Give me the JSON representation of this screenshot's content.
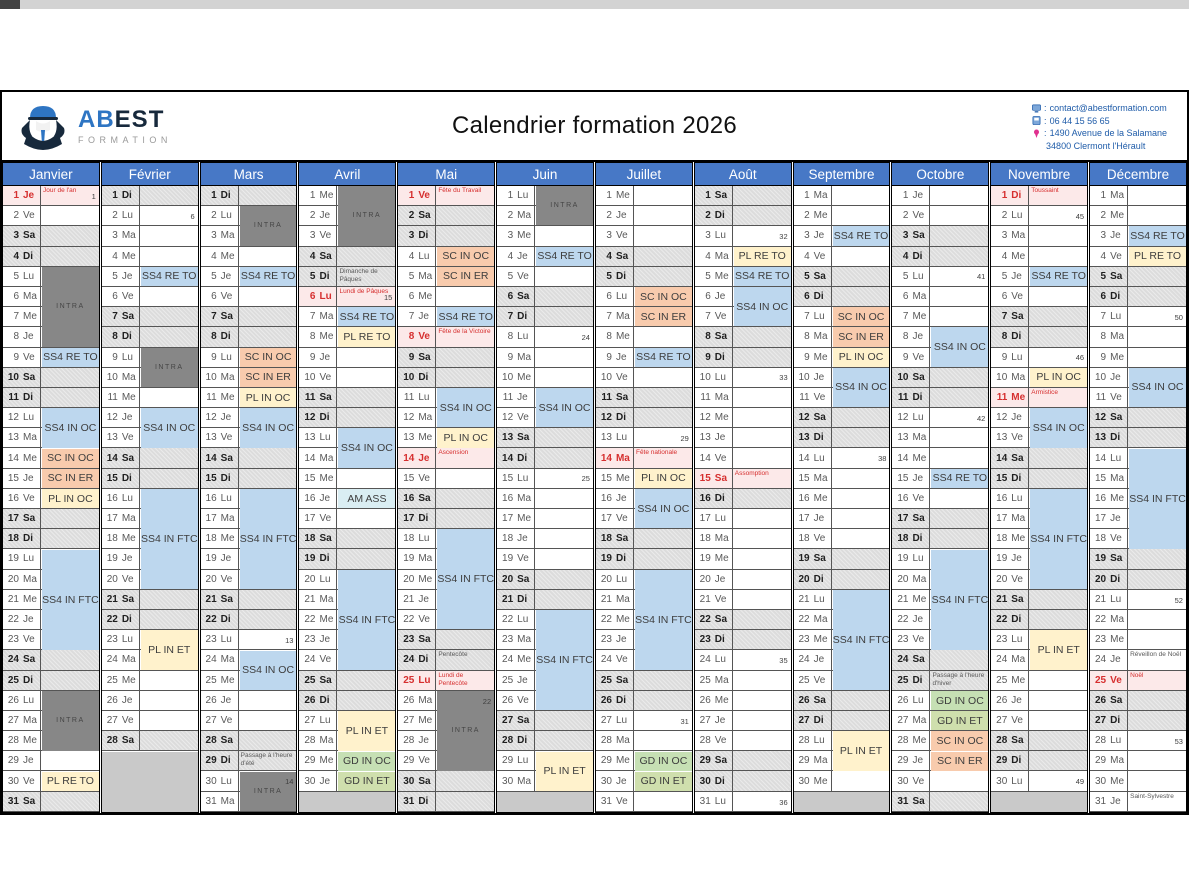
{
  "colors": {
    "header": "#4778c6",
    "blue": "#bdd7ee",
    "orange": "#f8cbad",
    "yellow": "#fff2cc",
    "green": "#c6e0b4",
    "green2": "#cfdfad",
    "cyan": "#daeef3",
    "intra": "#878787",
    "filler": "#c9c9c9",
    "holiday": "#fce9e9",
    "red": "#d62f2f",
    "contact_blue": "#1f5ca9"
  },
  "header": {
    "title": "Calendrier formation 2026",
    "logo": {
      "brand_left": "AB",
      "brand_right": "EST",
      "sub": "FORMATION"
    },
    "contact": {
      "prefix": ":",
      "email": "contact@abestformation.com",
      "phone": "06 44 15 56 65",
      "address_line1": "1490 Avenue de la Salamane",
      "address_line2": "34800 Clermont l'Hérault"
    }
  },
  "calendar": {
    "year": 2026,
    "weekday_abbrev": [
      "Di",
      "Lu",
      "Ma",
      "Me",
      "Je",
      "Ve",
      "Sa"
    ],
    "months": [
      {
        "name": "Janvier",
        "days": 31,
        "blocks": [
          {
            "s": 5,
            "e": 8,
            "code": "INTRA",
            "t": "intra"
          },
          {
            "s": 9,
            "e": 9,
            "code": "SS4 RE TO",
            "t": "blue"
          },
          {
            "s": 12,
            "e": 13,
            "code": "SS4 IN OC",
            "t": "blue"
          },
          {
            "s": 14,
            "e": 14,
            "code": "SC IN OC",
            "t": "orange"
          },
          {
            "s": 15,
            "e": 15,
            "code": "SC IN ER",
            "t": "orange"
          },
          {
            "s": 16,
            "e": 16,
            "code": "PL IN OC",
            "t": "yellow"
          },
          {
            "s": 19,
            "e": 23,
            "code": "SS4 IN FTC",
            "t": "blue"
          },
          {
            "s": 26,
            "e": 28,
            "code": "INTRA",
            "t": "intra"
          },
          {
            "s": 30,
            "e": 30,
            "code": "PL RE TO",
            "t": "yellow"
          }
        ],
        "holidays": [
          {
            "day": 1,
            "label": "Jour de l'an",
            "red": true
          }
        ],
        "weeks": [
          {
            "day": 1,
            "num": "1"
          }
        ]
      },
      {
        "name": "Février",
        "days": 28,
        "blocks": [
          {
            "s": 5,
            "e": 5,
            "code": "SS4 RE TO",
            "t": "blue"
          },
          {
            "s": 9,
            "e": 10,
            "code": "INTRA",
            "t": "intra"
          },
          {
            "s": 12,
            "e": 13,
            "code": "SS4 IN OC",
            "t": "blue"
          },
          {
            "s": 16,
            "e": 20,
            "code": "SS4 IN FTC",
            "t": "blue"
          },
          {
            "s": 23,
            "e": 24,
            "code": "PL IN ET",
            "t": "yellow"
          }
        ],
        "holidays": [],
        "weeks": [
          {
            "day": 2,
            "num": "6"
          }
        ]
      },
      {
        "name": "Mars",
        "days": 31,
        "blocks": [
          {
            "s": 2,
            "e": 3,
            "code": "INTRA",
            "t": "intra"
          },
          {
            "s": 5,
            "e": 5,
            "code": "SS4 RE TO",
            "t": "blue"
          },
          {
            "s": 9,
            "e": 9,
            "code": "SC IN OC",
            "t": "orange"
          },
          {
            "s": 10,
            "e": 10,
            "code": "SC IN ER",
            "t": "orange"
          },
          {
            "s": 11,
            "e": 11,
            "code": "PL IN OC",
            "t": "yellow"
          },
          {
            "s": 12,
            "e": 13,
            "code": "SS4 IN OC",
            "t": "blue"
          },
          {
            "s": 16,
            "e": 20,
            "code": "SS4 IN FTC",
            "t": "blue"
          },
          {
            "s": 24,
            "e": 25,
            "code": "SS4 IN OC",
            "t": "blue"
          },
          {
            "s": 30,
            "e": 31,
            "code": "INTRA",
            "t": "intra"
          }
        ],
        "holidays": [
          {
            "day": 29,
            "label": "Passage à l'heure d'été",
            "red": false
          }
        ],
        "weeks": [
          {
            "day": 23,
            "num": "13"
          },
          {
            "day": 30,
            "num": "14"
          }
        ]
      },
      {
        "name": "Avril",
        "days": 30,
        "blocks": [
          {
            "s": 1,
            "e": 3,
            "code": "INTRA",
            "t": "intra"
          },
          {
            "s": 7,
            "e": 7,
            "code": "SS4 RE TO",
            "t": "blue"
          },
          {
            "s": 8,
            "e": 8,
            "code": "PL RE TO",
            "t": "yellow"
          },
          {
            "s": 13,
            "e": 14,
            "code": "SS4 IN OC",
            "t": "blue"
          },
          {
            "s": 16,
            "e": 16,
            "code": "AM ASS",
            "t": "cyan"
          },
          {
            "s": 20,
            "e": 24,
            "code": "SS4 IN FTC",
            "t": "blue"
          },
          {
            "s": 27,
            "e": 28,
            "code": "PL IN ET",
            "t": "yellow"
          },
          {
            "s": 29,
            "e": 29,
            "code": "GD IN OC",
            "t": "green"
          },
          {
            "s": 30,
            "e": 30,
            "code": "GD IN ET",
            "t": "green2"
          }
        ],
        "holidays": [
          {
            "day": 5,
            "label": "Dimanche de Pâques",
            "red": false
          },
          {
            "day": 6,
            "label": "Lundi de Pâques",
            "red": true
          }
        ],
        "weeks": [
          {
            "day": 6,
            "num": "15"
          }
        ]
      },
      {
        "name": "Mai",
        "days": 31,
        "blocks": [
          {
            "s": 4,
            "e": 4,
            "code": "SC IN OC",
            "t": "orange"
          },
          {
            "s": 5,
            "e": 5,
            "code": "SC IN ER",
            "t": "orange"
          },
          {
            "s": 7,
            "e": 7,
            "code": "SS4 RE TO",
            "t": "blue"
          },
          {
            "s": 11,
            "e": 12,
            "code": "SS4 IN OC",
            "t": "blue"
          },
          {
            "s": 13,
            "e": 13,
            "code": "PL IN OC",
            "t": "yellow"
          },
          {
            "s": 18,
            "e": 22,
            "code": "SS4 IN FTC",
            "t": "blue"
          },
          {
            "s": 26,
            "e": 29,
            "code": "INTRA",
            "t": "intra"
          }
        ],
        "holidays": [
          {
            "day": 1,
            "label": "Fête du Travail",
            "red": true
          },
          {
            "day": 8,
            "label": "Fête de la Victoire",
            "red": true
          },
          {
            "day": 14,
            "label": "Ascension",
            "red": true
          },
          {
            "day": 24,
            "label": "Pentecôte",
            "red": false
          },
          {
            "day": 25,
            "label": "Lundi de Pentecôte",
            "red": true
          }
        ],
        "weeks": [
          {
            "day": 26,
            "num": "22"
          }
        ]
      },
      {
        "name": "Juin",
        "days": 30,
        "blocks": [
          {
            "s": 1,
            "e": 2,
            "code": "INTRA",
            "t": "intra"
          },
          {
            "s": 4,
            "e": 4,
            "code": "SS4 RE TO",
            "t": "blue"
          },
          {
            "s": 11,
            "e": 12,
            "code": "SS4 IN OC",
            "t": "blue"
          },
          {
            "s": 22,
            "e": 26,
            "code": "SS4 IN FTC",
            "t": "blue"
          },
          {
            "s": 29,
            "e": 30,
            "code": "PL IN ET",
            "t": "yellow"
          }
        ],
        "holidays": [],
        "weeks": [
          {
            "day": 8,
            "num": "24"
          },
          {
            "day": 15,
            "num": "25"
          }
        ]
      },
      {
        "name": "Juillet",
        "days": 31,
        "blocks": [
          {
            "s": 6,
            "e": 6,
            "code": "SC IN OC",
            "t": "orange"
          },
          {
            "s": 7,
            "e": 7,
            "code": "SC IN ER",
            "t": "orange"
          },
          {
            "s": 9,
            "e": 9,
            "code": "SS4 RE TO",
            "t": "blue"
          },
          {
            "s": 15,
            "e": 15,
            "code": "PL IN OC",
            "t": "yellow"
          },
          {
            "s": 16,
            "e": 17,
            "code": "SS4 IN OC",
            "t": "blue"
          },
          {
            "s": 20,
            "e": 24,
            "code": "SS4 IN FTC",
            "t": "blue"
          },
          {
            "s": 29,
            "e": 29,
            "code": "GD IN OC",
            "t": "green"
          },
          {
            "s": 30,
            "e": 30,
            "code": "GD IN ET",
            "t": "green2"
          }
        ],
        "holidays": [
          {
            "day": 14,
            "label": "Fête nationale",
            "red": true
          }
        ],
        "weeks": [
          {
            "day": 13,
            "num": "29"
          },
          {
            "day": 27,
            "num": "31"
          }
        ]
      },
      {
        "name": "Août",
        "days": 31,
        "blocks": [
          {
            "s": 4,
            "e": 4,
            "code": "PL RE TO",
            "t": "yellow"
          },
          {
            "s": 5,
            "e": 5,
            "code": "SS4 RE TO",
            "t": "blue"
          },
          {
            "s": 6,
            "e": 7,
            "code": "SS4 IN OC",
            "t": "blue"
          }
        ],
        "holidays": [
          {
            "day": 15,
            "label": "Assomption",
            "red": true
          }
        ],
        "weeks": [
          {
            "day": 3,
            "num": "32"
          },
          {
            "day": 10,
            "num": "33"
          },
          {
            "day": 24,
            "num": "35"
          },
          {
            "day": 31,
            "num": "36"
          }
        ]
      },
      {
        "name": "Septembre",
        "days": 30,
        "blocks": [
          {
            "s": 3,
            "e": 3,
            "code": "SS4 RE TO",
            "t": "blue"
          },
          {
            "s": 7,
            "e": 7,
            "code": "SC IN OC",
            "t": "orange"
          },
          {
            "s": 8,
            "e": 8,
            "code": "SC IN ER",
            "t": "orange"
          },
          {
            "s": 9,
            "e": 9,
            "code": "PL IN OC",
            "t": "yellow"
          },
          {
            "s": 10,
            "e": 11,
            "code": "SS4 IN OC",
            "t": "blue"
          },
          {
            "s": 21,
            "e": 25,
            "code": "SS4 IN FTC",
            "t": "blue"
          },
          {
            "s": 28,
            "e": 29,
            "code": "PL IN ET",
            "t": "yellow"
          }
        ],
        "holidays": [],
        "weeks": [
          {
            "day": 14,
            "num": "38"
          }
        ]
      },
      {
        "name": "Octobre",
        "days": 31,
        "blocks": [
          {
            "s": 8,
            "e": 9,
            "code": "SS4 IN OC",
            "t": "blue"
          },
          {
            "s": 15,
            "e": 15,
            "code": "SS4 RE TO",
            "t": "blue"
          },
          {
            "s": 19,
            "e": 23,
            "code": "SS4 IN FTC",
            "t": "blue"
          },
          {
            "s": 26,
            "e": 26,
            "code": "GD IN OC",
            "t": "green"
          },
          {
            "s": 27,
            "e": 27,
            "code": "GD IN ET",
            "t": "green2"
          },
          {
            "s": 28,
            "e": 28,
            "code": "SC IN OC",
            "t": "orange"
          },
          {
            "s": 29,
            "e": 29,
            "code": "SC IN ER",
            "t": "orange"
          }
        ],
        "holidays": [
          {
            "day": 25,
            "label": "Passage à l'heure d'hiver",
            "red": false
          }
        ],
        "weeks": [
          {
            "day": 5,
            "num": "41"
          },
          {
            "day": 12,
            "num": "42"
          }
        ]
      },
      {
        "name": "Novembre",
        "days": 30,
        "blocks": [
          {
            "s": 5,
            "e": 5,
            "code": "SS4 RE TO",
            "t": "blue"
          },
          {
            "s": 10,
            "e": 10,
            "code": "PL IN OC",
            "t": "yellow"
          },
          {
            "s": 12,
            "e": 13,
            "code": "SS4 IN OC",
            "t": "blue"
          },
          {
            "s": 16,
            "e": 20,
            "code": "SS4 IN FTC",
            "t": "blue"
          },
          {
            "s": 23,
            "e": 24,
            "code": "PL IN ET",
            "t": "yellow"
          }
        ],
        "holidays": [
          {
            "day": 1,
            "label": "Toussaint",
            "red": true
          },
          {
            "day": 11,
            "label": "Armistice",
            "red": true
          }
        ],
        "weeks": [
          {
            "day": 2,
            "num": "45"
          },
          {
            "day": 9,
            "num": "46"
          },
          {
            "day": 30,
            "num": "49"
          }
        ]
      },
      {
        "name": "Décembre",
        "days": 31,
        "blocks": [
          {
            "s": 3,
            "e": 3,
            "code": "SS4 RE TO",
            "t": "blue"
          },
          {
            "s": 4,
            "e": 4,
            "code": "PL RE TO",
            "t": "yellow"
          },
          {
            "s": 10,
            "e": 11,
            "code": "SS4 IN OC",
            "t": "blue"
          },
          {
            "s": 14,
            "e": 18,
            "code": "SS4 IN FTC",
            "t": "blue"
          }
        ],
        "holidays": [
          {
            "day": 24,
            "label": "Réveillon de Noël",
            "red": false
          },
          {
            "day": 25,
            "label": "Noël",
            "red": true
          },
          {
            "day": 31,
            "label": "Saint-Sylvestre",
            "red": false
          }
        ],
        "weeks": [
          {
            "day": 7,
            "num": "50"
          },
          {
            "day": 21,
            "num": "52"
          },
          {
            "day": 28,
            "num": "53"
          }
        ]
      }
    ]
  }
}
